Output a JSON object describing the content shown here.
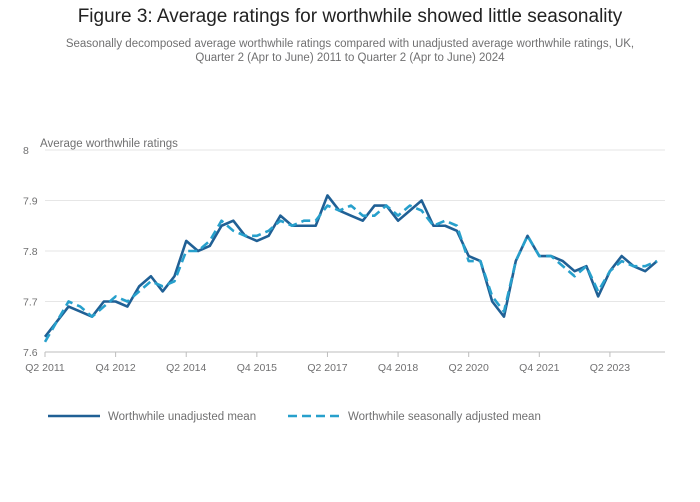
{
  "title": "Figure 3: Average ratings for worthwhile showed little seasonality",
  "subtitle_line1": "Seasonally decomposed average worthwhile ratings compared with unadjusted average worthwhile ratings, UK,",
  "subtitle_line2": "Quarter 2 (Apr to June) 2011 to Quarter 2 (Apr to June) 2024",
  "chart_data": {
    "type": "line",
    "title": "Figure 3: Average ratings for worthwhile showed little seasonality",
    "ylabel": "Average worthwhile ratings",
    "xlabel": "",
    "ylim": [
      7.6,
      8.0
    ],
    "y_ticks": [
      "7.6",
      "7.7",
      "7.8",
      "7.9",
      "8"
    ],
    "y_tick_values": [
      7.6,
      7.7,
      7.8,
      7.9,
      8.0
    ],
    "x_tick_labels": [
      "Q2 2011",
      "Q4 2012",
      "Q2 2014",
      "Q4 2015",
      "Q2 2017",
      "Q4 2018",
      "Q2 2020",
      "Q4 2021",
      "Q2 2023"
    ],
    "x_tick_indices": [
      0,
      6,
      12,
      18,
      24,
      30,
      36,
      42,
      48
    ],
    "legend_position": "bottom",
    "grid": true,
    "series": [
      {
        "name": "Worthwhile unadjusted mean",
        "color": "#206095",
        "style": "solid",
        "values": [
          7.63,
          7.66,
          7.69,
          7.68,
          7.67,
          7.7,
          7.7,
          7.69,
          7.73,
          7.75,
          7.72,
          7.75,
          7.82,
          7.8,
          7.81,
          7.85,
          7.86,
          7.83,
          7.82,
          7.83,
          7.87,
          7.85,
          7.85,
          7.85,
          7.91,
          7.88,
          7.87,
          7.86,
          7.89,
          7.89,
          7.86,
          7.88,
          7.9,
          7.85,
          7.85,
          7.84,
          7.79,
          7.78,
          7.7,
          7.67,
          7.78,
          7.83,
          7.79,
          7.79,
          7.78,
          7.76,
          7.77,
          7.71,
          7.76,
          7.79,
          7.77,
          7.76,
          7.78
        ]
      },
      {
        "name": "Worthwhile seasonally adjusted mean",
        "color": "#27A0CC",
        "style": "dashed",
        "values": [
          7.62,
          7.66,
          7.7,
          7.69,
          7.67,
          7.69,
          7.71,
          7.7,
          7.72,
          7.74,
          7.73,
          7.74,
          7.8,
          7.8,
          7.82,
          7.86,
          7.84,
          7.83,
          7.83,
          7.84,
          7.86,
          7.85,
          7.86,
          7.86,
          7.89,
          7.88,
          7.89,
          7.87,
          7.87,
          7.89,
          7.87,
          7.89,
          7.88,
          7.85,
          7.86,
          7.85,
          7.78,
          7.78,
          7.71,
          7.68,
          7.78,
          7.83,
          7.79,
          7.79,
          7.77,
          7.75,
          7.77,
          7.72,
          7.76,
          7.78,
          7.77,
          7.77,
          7.78
        ]
      }
    ]
  }
}
